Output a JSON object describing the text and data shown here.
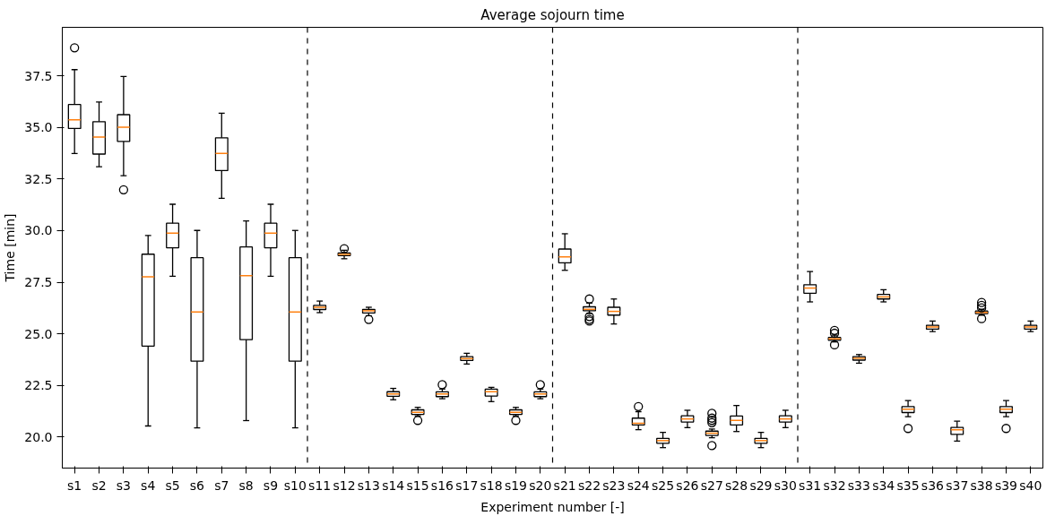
{
  "chart_data": {
    "type": "box",
    "title": "Average sojourn time",
    "xlabel": "Experiment number [-]",
    "ylabel": "Time [min]",
    "categories": [
      "s1",
      "s2",
      "s3",
      "s4",
      "s5",
      "s6",
      "s7",
      "s8",
      "s9",
      "s10",
      "s11",
      "s12",
      "s13",
      "s14",
      "s15",
      "s16",
      "s17",
      "s18",
      "s19",
      "s20",
      "s21",
      "s22",
      "s23",
      "s24",
      "s25",
      "s26",
      "s27",
      "s28",
      "s29",
      "s30",
      "s31",
      "s32",
      "s33",
      "s34",
      "s35",
      "s36",
      "s37",
      "s38",
      "s39",
      "s40"
    ],
    "ylim": [
      18.5,
      39.85
    ],
    "yticks": [
      {
        "value": 20,
        "label": "20.0"
      },
      {
        "value": 22.5,
        "label": "22.5"
      },
      {
        "value": 25,
        "label": "25.0"
      },
      {
        "value": 27.5,
        "label": "27.5"
      },
      {
        "value": 30,
        "label": "30.0"
      },
      {
        "value": 32.5,
        "label": "32.5"
      },
      {
        "value": 35,
        "label": "35.0"
      },
      {
        "value": 37.5,
        "label": "37.5"
      }
    ],
    "boxes": [
      {
        "low": 33.74,
        "q1": 34.95,
        "median": 35.37,
        "q3": 36.11,
        "high": 37.8,
        "outliers": [
          38.86
        ]
      },
      {
        "low": 33.1,
        "q1": 33.71,
        "median": 34.53,
        "q3": 35.28,
        "high": 36.23
      },
      {
        "low": 32.66,
        "q1": 34.32,
        "median": 35.01,
        "q3": 35.62,
        "high": 37.47,
        "outliers": [
          31.98
        ]
      },
      {
        "low": 20.54,
        "q1": 24.41,
        "median": 27.76,
        "q3": 28.86,
        "high": 29.77
      },
      {
        "low": 27.79,
        "q1": 29.17,
        "median": 29.88,
        "q3": 30.36,
        "high": 31.28
      },
      {
        "low": 20.45,
        "q1": 23.68,
        "median": 26.06,
        "q3": 28.69,
        "high": 30.01
      },
      {
        "low": 31.57,
        "q1": 32.91,
        "median": 33.74,
        "q3": 34.5,
        "high": 35.69
      },
      {
        "low": 20.8,
        "q1": 24.72,
        "median": 27.82,
        "q3": 29.21,
        "high": 30.47
      },
      {
        "low": 27.79,
        "q1": 29.17,
        "median": 29.88,
        "q3": 30.36,
        "high": 31.28
      },
      {
        "low": 20.45,
        "q1": 23.68,
        "median": 26.06,
        "q3": 28.69,
        "high": 30.01
      },
      {
        "low": 26.03,
        "q1": 26.18,
        "median": 26.29,
        "q3": 26.38,
        "high": 26.59
      },
      {
        "low": 28.64,
        "q1": 28.79,
        "median": 28.85,
        "q3": 28.92,
        "high": 29.05,
        "outliers": [
          29.13
        ]
      },
      {
        "low": 25.88,
        "q1": 26.01,
        "median": 26.12,
        "q3": 26.19,
        "high": 26.29,
        "outliers": [
          25.7
        ]
      },
      {
        "low": 21.81,
        "q1": 21.98,
        "median": 22.09,
        "q3": 22.2,
        "high": 22.36
      },
      {
        "low": 21.03,
        "q1": 21.1,
        "median": 21.2,
        "q3": 21.32,
        "high": 21.44,
        "outliers": [
          20.81
        ]
      },
      {
        "low": 21.86,
        "q1": 21.96,
        "median": 22.09,
        "q3": 22.19,
        "high": 22.33,
        "outliers": [
          22.54
        ]
      },
      {
        "low": 23.54,
        "q1": 23.71,
        "median": 23.8,
        "q3": 23.9,
        "high": 24.06
      },
      {
        "low": 21.72,
        "q1": 21.99,
        "median": 22.2,
        "q3": 22.32,
        "high": 22.41
      },
      {
        "low": 21.03,
        "q1": 21.1,
        "median": 21.2,
        "q3": 21.32,
        "high": 21.44,
        "outliers": [
          20.81
        ]
      },
      {
        "low": 21.86,
        "q1": 21.96,
        "median": 22.09,
        "q3": 22.19,
        "high": 22.33,
        "outliers": [
          22.54
        ]
      },
      {
        "low": 28.08,
        "q1": 28.44,
        "median": 28.73,
        "q3": 29.11,
        "high": 29.85
      },
      {
        "low": 25.98,
        "q1": 26.12,
        "median": 26.19,
        "q3": 26.31,
        "high": 26.49,
        "outliers": [
          26.69,
          25.84,
          25.7,
          25.62
        ]
      },
      {
        "low": 25.48,
        "q1": 25.91,
        "median": 26.09,
        "q3": 26.29,
        "high": 26.69
      },
      {
        "low": 20.36,
        "q1": 20.59,
        "median": 20.67,
        "q3": 20.92,
        "high": 21.23,
        "outliers": [
          21.48
        ]
      },
      {
        "low": 19.49,
        "q1": 19.7,
        "median": 19.83,
        "q3": 19.94,
        "high": 20.23
      },
      {
        "low": 20.46,
        "q1": 20.73,
        "median": 20.88,
        "q3": 21.03,
        "high": 21.3
      },
      {
        "low": 19.97,
        "q1": 20.08,
        "median": 20.19,
        "q3": 20.29,
        "high": 20.39,
        "outliers": [
          21.15,
          20.92,
          20.81,
          20.7,
          19.59
        ]
      },
      {
        "low": 20.27,
        "q1": 20.59,
        "median": 20.81,
        "q3": 21.02,
        "high": 21.53
      },
      {
        "low": 19.49,
        "q1": 19.7,
        "median": 19.83,
        "q3": 19.94,
        "high": 20.23
      },
      {
        "low": 20.46,
        "q1": 20.73,
        "median": 20.88,
        "q3": 21.03,
        "high": 21.3
      },
      {
        "low": 26.55,
        "q1": 26.97,
        "median": 27.22,
        "q3": 27.38,
        "high": 28.02
      },
      {
        "low": 24.61,
        "q1": 24.69,
        "median": 24.76,
        "q3": 24.83,
        "high": 24.94,
        "outliers": [
          25.17,
          25.03,
          24.47
        ]
      },
      {
        "low": 23.58,
        "q1": 23.73,
        "median": 23.82,
        "q3": 23.9,
        "high": 24.0
      },
      {
        "low": 26.55,
        "q1": 26.69,
        "median": 26.79,
        "q3": 26.91,
        "high": 27.14
      },
      {
        "low": 20.99,
        "q1": 21.19,
        "median": 21.35,
        "q3": 21.48,
        "high": 21.77,
        "outliers": [
          20.42
        ]
      },
      {
        "low": 25.11,
        "q1": 25.23,
        "median": 25.34,
        "q3": 25.42,
        "high": 25.62
      },
      {
        "low": 19.81,
        "q1": 20.13,
        "median": 20.36,
        "q3": 20.47,
        "high": 20.77
      },
      {
        "low": 25.91,
        "q1": 25.98,
        "median": 26.04,
        "q3": 26.11,
        "high": 26.18,
        "outliers": [
          26.52,
          26.38,
          26.26,
          25.74
        ]
      },
      {
        "low": 20.99,
        "q1": 21.19,
        "median": 21.35,
        "q3": 21.48,
        "high": 21.77,
        "outliers": [
          20.42
        ]
      },
      {
        "low": 25.11,
        "q1": 25.23,
        "median": 25.34,
        "q3": 25.42,
        "high": 25.62
      }
    ]
  }
}
